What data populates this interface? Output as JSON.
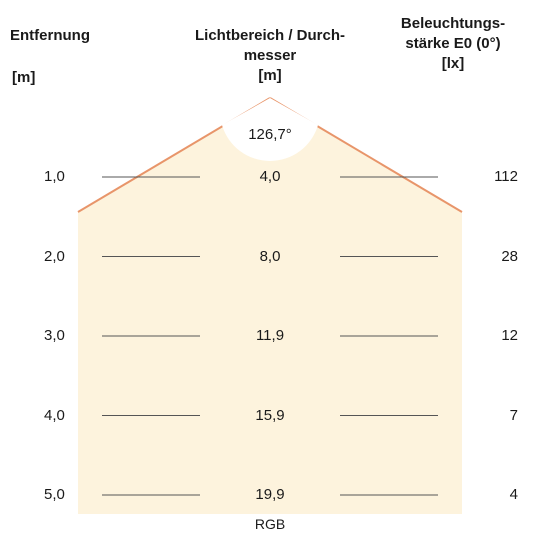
{
  "headers": {
    "distance": {
      "line1": "Entfernung",
      "unit": "[m]"
    },
    "diameter": {
      "line1": "Lichtbereich / Durch-",
      "line2": "messer",
      "unit": "[m]"
    },
    "illuminance": {
      "line1": "Beleuchtungs-",
      "line2": "stärke E0 (0°)",
      "unit": "[lx]"
    }
  },
  "beam_angle": "126,7°",
  "rows": [
    {
      "distance": "1,0",
      "diameter": "4,0",
      "lux": "112"
    },
    {
      "distance": "2,0",
      "diameter": "8,0",
      "lux": "28"
    },
    {
      "distance": "3,0",
      "diameter": "11,9",
      "lux": "12"
    },
    {
      "distance": "4,0",
      "diameter": "15,9",
      "lux": "7"
    },
    {
      "distance": "5,0",
      "diameter": "19,9",
      "lux": "4"
    }
  ],
  "caption": "RGB",
  "colors": {
    "light_fill": "#fdf3dd",
    "beam_edge": "#e8956a",
    "row_line": "#555555"
  }
}
